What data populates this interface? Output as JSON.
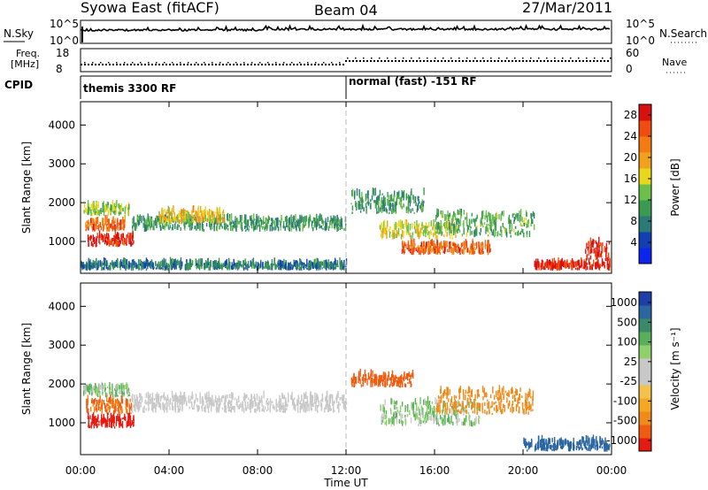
{
  "header": {
    "station": "Syowa East (fitACF)",
    "beam": "Beam 04",
    "date": "27/Mar/2011"
  },
  "status_panels": {
    "nsky_label": "N.Sky",
    "nsky_ticks": [
      "10^5",
      "10^0"
    ],
    "nsearch_label": "N.Search",
    "freq_label_1": "Freq.",
    "freq_label_2": "[MHz]",
    "freq_ticks": [
      "18",
      "8"
    ],
    "nave_label": "Nave",
    "nave_ticks": [
      "60",
      "0"
    ],
    "cpid_label": "CPID",
    "cpid_segments": [
      {
        "label": "themis 3300 RF",
        "start_hour": 0,
        "end_hour": 12
      },
      {
        "label": "normal (fast) -151 RF",
        "start_hour": 12,
        "end_hour": 24
      }
    ]
  },
  "colorbars": {
    "power": {
      "label": "Power [dB]",
      "ticks": [
        "28",
        "24",
        "20",
        "16",
        "12",
        "8",
        "4"
      ],
      "colors": [
        "#0b25ee",
        "#123fb2",
        "#2c7a78",
        "#3a9a52",
        "#6cbf4a",
        "#e7d81d",
        "#f2a11c",
        "#f47b12",
        "#f04c0f",
        "#d91010"
      ]
    },
    "velocity": {
      "label": "Velocity [m s⁻¹]",
      "ticks": [
        "1000",
        "500",
        "100",
        "25",
        "-25",
        "-100",
        "-500",
        "-1000"
      ],
      "colors": [
        "#1f3fa8",
        "#2b66a2",
        "#3a8a6a",
        "#59b05a",
        "#8fd06a",
        "#c8c8c8",
        "#c8c8c8",
        "#f2c24a",
        "#f5a623",
        "#f08a1a",
        "#ee5c12",
        "#e61a10"
      ]
    }
  },
  "axes": {
    "y_label": "Slant Range [km]",
    "y_ticks": [
      "4000",
      "3000",
      "2000",
      "1000"
    ],
    "x_label": "Time UT",
    "x_ticks": [
      "00:00",
      "04:00",
      "08:00",
      "12:00",
      "16:00",
      "20:00",
      "00:00"
    ]
  },
  "chart_data": [
    {
      "type": "heatmap",
      "title": "Power [dB]",
      "x_hours": [
        0,
        24
      ],
      "y_range_km": [
        180,
        4600
      ],
      "ylim_colorbar": [
        0,
        30
      ],
      "patches": [
        {
          "t0": 0.1,
          "t1": 2.2,
          "r0": 1650,
          "r1": 1900,
          "v": 14
        },
        {
          "t0": 0.2,
          "t1": 2.0,
          "r0": 1250,
          "r1": 1500,
          "v": 24
        },
        {
          "t0": 0.3,
          "t1": 2.4,
          "r0": 850,
          "r1": 1100,
          "v": 28
        },
        {
          "t0": 2.3,
          "t1": 12.0,
          "r0": 1250,
          "r1": 1550,
          "v": 10
        },
        {
          "t0": 3.5,
          "t1": 6.5,
          "r0": 1450,
          "r1": 1750,
          "v": 18
        },
        {
          "t0": 0.0,
          "t1": 12.0,
          "r0": 250,
          "r1": 400,
          "v": 8
        },
        {
          "t0": 12.2,
          "t1": 15.5,
          "r0": 1700,
          "r1": 2200,
          "v": 10
        },
        {
          "t0": 13.5,
          "t1": 17.0,
          "r0": 1050,
          "r1": 1400,
          "v": 16
        },
        {
          "t0": 14.5,
          "t1": 18.5,
          "r0": 650,
          "r1": 900,
          "v": 24
        },
        {
          "t0": 16.0,
          "t1": 20.5,
          "r0": 1100,
          "r1": 1700,
          "v": 12
        },
        {
          "t0": 20.5,
          "t1": 23.9,
          "r0": 250,
          "r1": 400,
          "v": 28
        },
        {
          "t0": 22.8,
          "t1": 23.9,
          "r0": 500,
          "r1": 950,
          "v": 28
        }
      ]
    },
    {
      "type": "heatmap",
      "title": "Velocity [m s⁻¹]",
      "x_hours": [
        0,
        24
      ],
      "y_range_km": [
        180,
        4600
      ],
      "patches": [
        {
          "t0": 0.1,
          "t1": 2.2,
          "r0": 1650,
          "r1": 1900,
          "v": 100
        },
        {
          "t0": 0.2,
          "t1": 2.3,
          "r0": 1200,
          "r1": 1550,
          "v": -300
        },
        {
          "t0": 0.3,
          "t1": 2.4,
          "r0": 850,
          "r1": 1100,
          "v": -800
        },
        {
          "t0": 2.3,
          "t1": 12.0,
          "r0": 1250,
          "r1": 1650,
          "v": 0
        },
        {
          "t0": 12.2,
          "t1": 15.0,
          "r0": 1900,
          "r1": 2200,
          "v": -400
        },
        {
          "t0": 13.5,
          "t1": 18.0,
          "r0": 900,
          "r1": 1500,
          "v": 80
        },
        {
          "t0": 16.0,
          "t1": 20.5,
          "r0": 1200,
          "r1": 1800,
          "v": -200
        },
        {
          "t0": 20.0,
          "t1": 23.9,
          "r0": 250,
          "r1": 500,
          "v": 800
        }
      ]
    }
  ]
}
